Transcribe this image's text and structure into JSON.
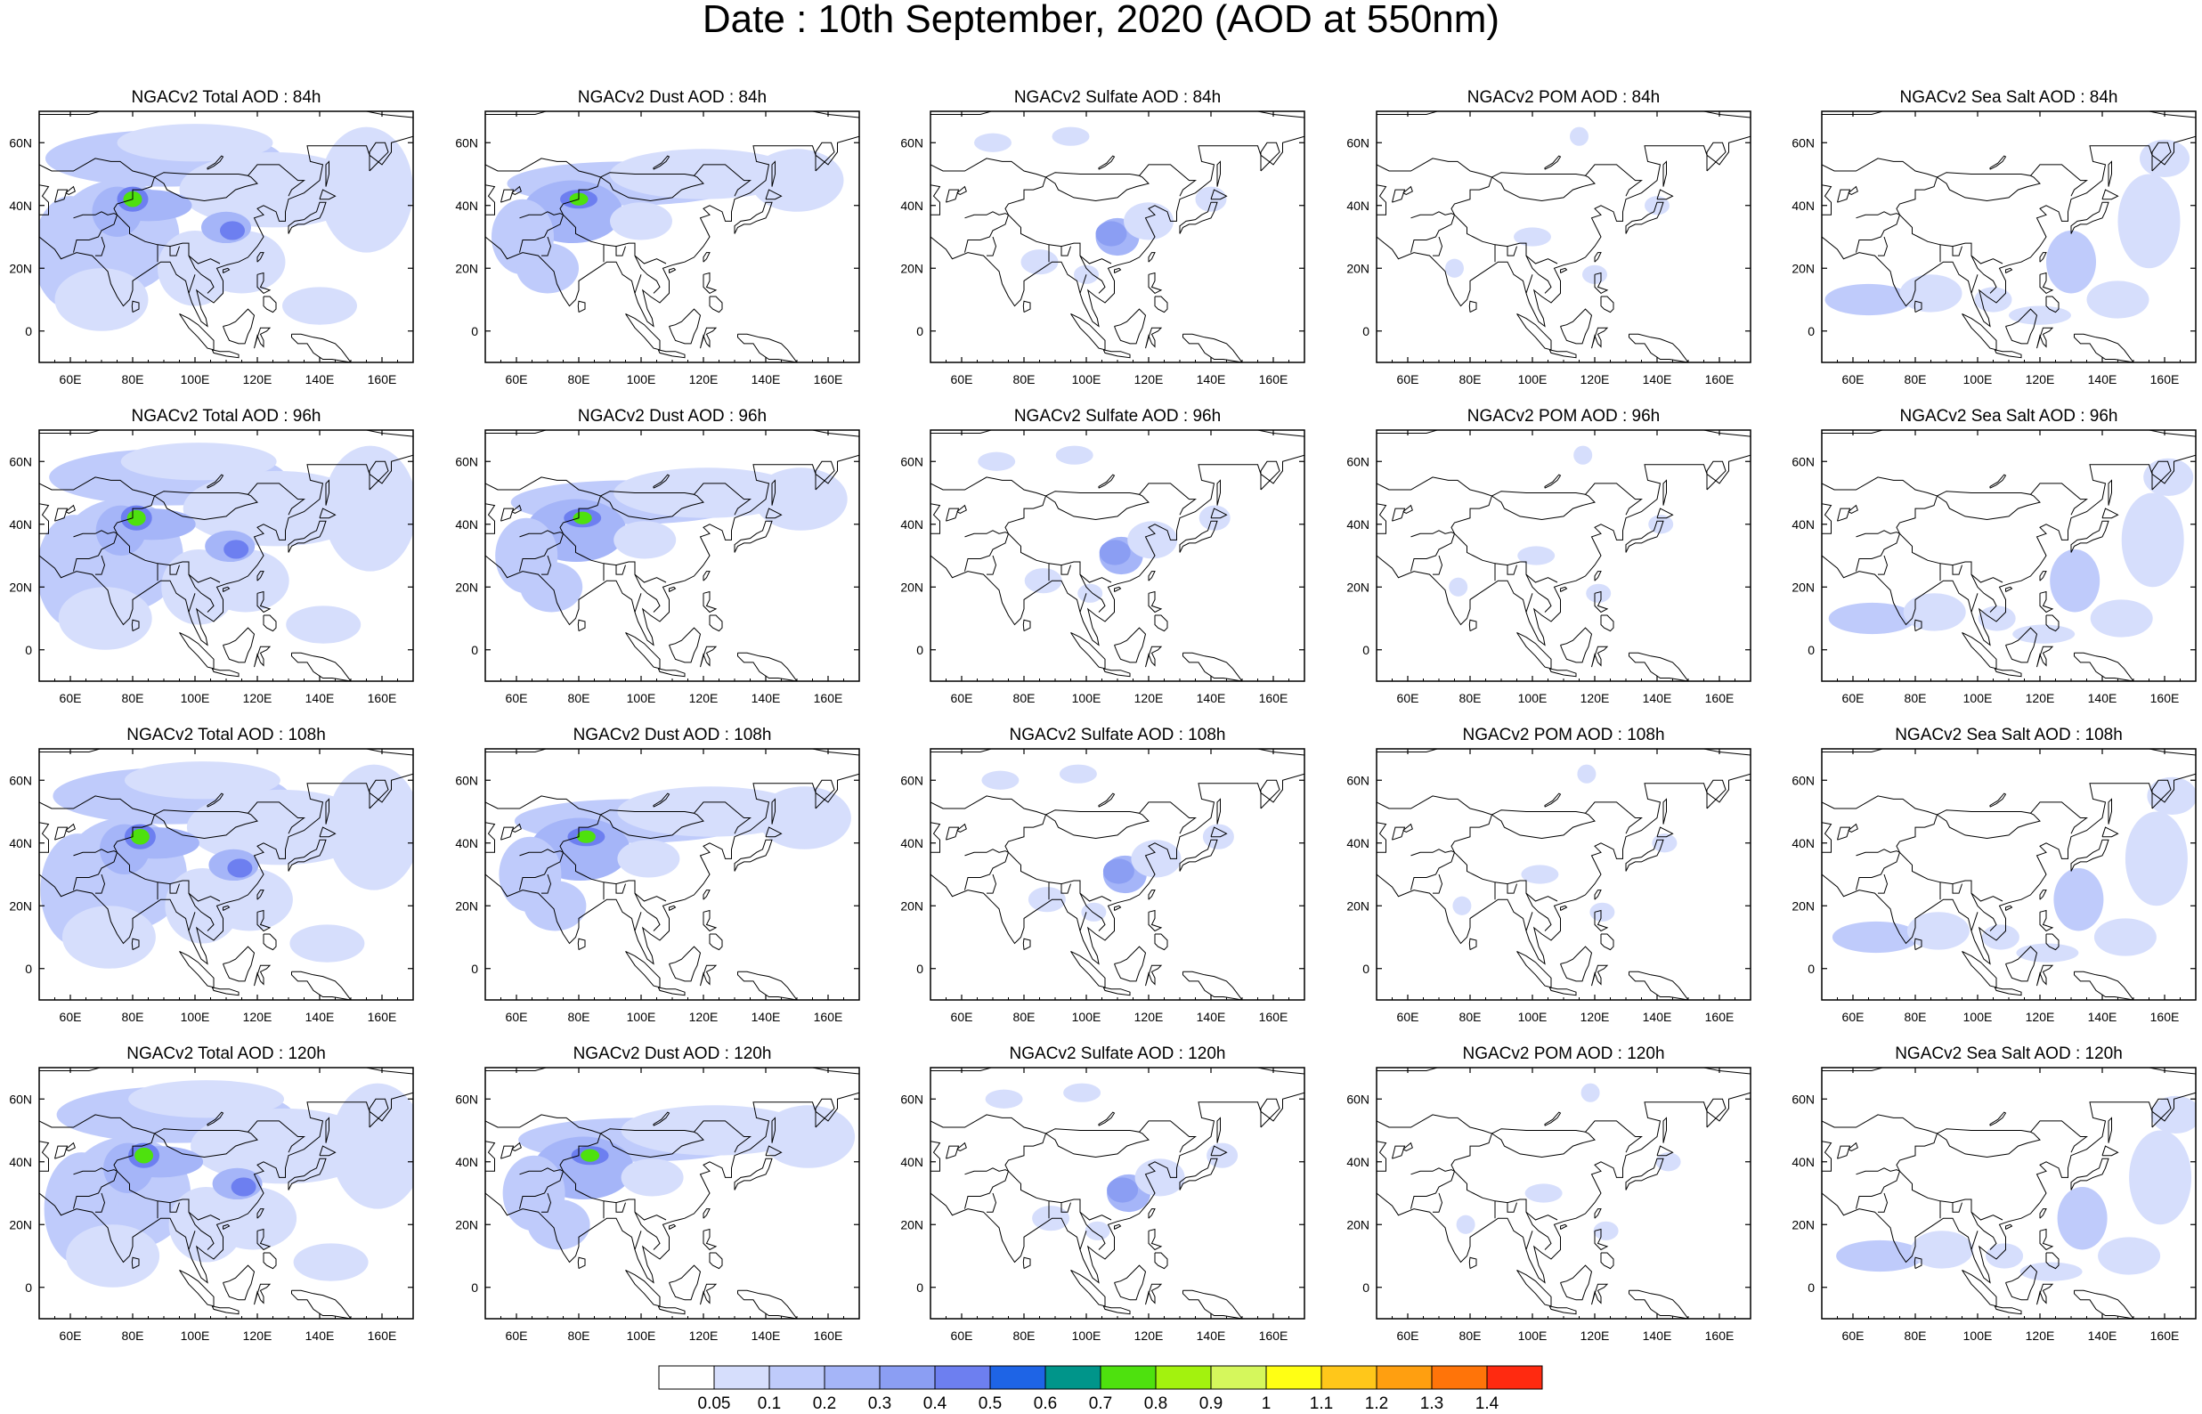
{
  "title": "Date : 10th September, 2020 (AOD at 550nm)",
  "panel_titles": [
    [
      "NGACv2 Total AOD : 84h",
      "NGACv2 Dust AOD : 84h",
      "NGACv2 Sulfate AOD : 84h",
      "NGACv2 POM AOD : 84h",
      "NGACv2 Sea Salt AOD : 84h"
    ],
    [
      "NGACv2 Total AOD : 96h",
      "NGACv2 Dust AOD : 96h",
      "NGACv2 Sulfate AOD : 96h",
      "NGACv2 POM AOD : 96h",
      "NGACv2 Sea Salt AOD : 96h"
    ],
    [
      "NGACv2 Total AOD : 108h",
      "NGACv2 Dust AOD : 108h",
      "NGACv2 Sulfate AOD : 108h",
      "NGACv2 POM AOD : 108h",
      "NGACv2 Sea Salt AOD : 108h"
    ],
    [
      "NGACv2 Total AOD : 120h",
      "NGACv2 Dust AOD : 120h",
      "NGACv2 Sulfate AOD : 120h",
      "NGACv2 POM AOD : 120h",
      "NGACv2 Sea Salt  AOD : 120h"
    ]
  ],
  "map": {
    "lon_range": [
      50,
      170
    ],
    "lat_range": [
      -10,
      70
    ],
    "lon_ticks": [
      {
        "value": 60,
        "label": "60E"
      },
      {
        "value": 80,
        "label": "80E"
      },
      {
        "value": 100,
        "label": "100E"
      },
      {
        "value": 120,
        "label": "120E"
      },
      {
        "value": 140,
        "label": "140E"
      },
      {
        "value": 160,
        "label": "160E"
      }
    ],
    "lat_ticks": [
      {
        "value": 0,
        "label": "0"
      },
      {
        "value": 20,
        "label": "20N"
      },
      {
        "value": 40,
        "label": "40N"
      },
      {
        "value": 60,
        "label": "60N"
      }
    ]
  },
  "colorbar": {
    "colors": [
      "#ffffff",
      "#d6defc",
      "#bfcbfb",
      "#a5b5f8",
      "#8b9ef3",
      "#6d7ff0",
      "#1e64e6",
      "#00958a",
      "#4ee10e",
      "#a3f20e",
      "#d5f75c",
      "#ffff14",
      "#ffc71a",
      "#ff9f10",
      "#ff7409",
      "#ff2a10"
    ],
    "labels": [
      "0.05",
      "0.1",
      "0.2",
      "0.3",
      "0.4",
      "0.5",
      "0.6",
      "0.7",
      "0.8",
      "0.9",
      "1",
      "1.1",
      "1.2",
      "1.3",
      "1.4"
    ]
  }
}
